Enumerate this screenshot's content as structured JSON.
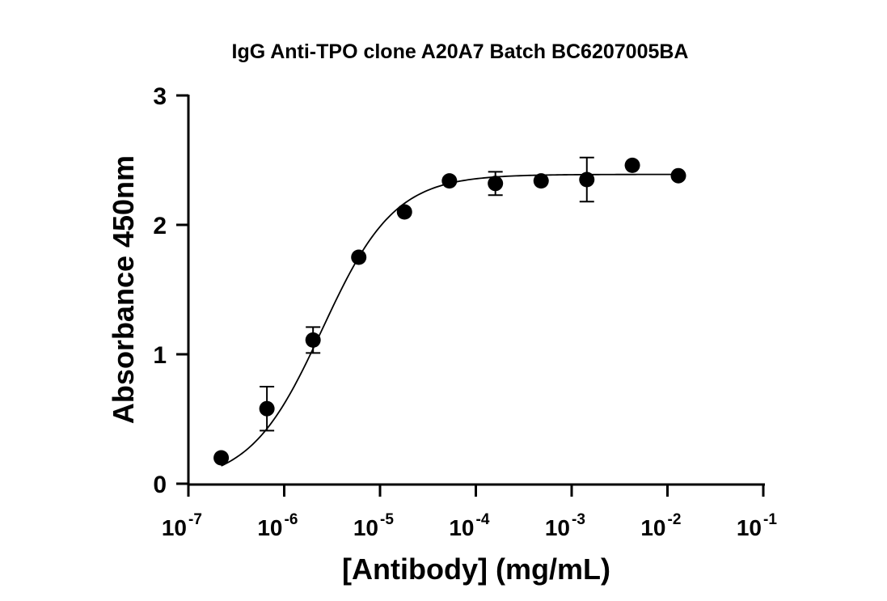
{
  "chart_data": {
    "type": "scatter",
    "title": "IgG Anti-TPO clone A20A7 Batch BC6207005BA",
    "xlabel": "[Antibody] (mg/mL)",
    "ylabel": "Absorbance 450nm",
    "x_scale": "log",
    "xlim": [
      1e-07,
      0.1
    ],
    "ylim": [
      0,
      3
    ],
    "y_ticks": [
      "0",
      "1",
      "2",
      "3"
    ],
    "x_ticks": [
      {
        "base": "10",
        "exp": "-7",
        "value": 1e-07
      },
      {
        "base": "10",
        "exp": "-6",
        "value": 1e-06
      },
      {
        "base": "10",
        "exp": "-5",
        "value": 1e-05
      },
      {
        "base": "10",
        "exp": "-4",
        "value": 0.0001
      },
      {
        "base": "10",
        "exp": "-3",
        "value": 0.001
      },
      {
        "base": "10",
        "exp": "-2",
        "value": 0.01
      },
      {
        "base": "10",
        "exp": "-1",
        "value": 0.1
      }
    ],
    "grid": false,
    "legend": "none",
    "series": [
      {
        "points": [
          {
            "x": 2.2e-07,
            "y": 0.2,
            "err": 0.0
          },
          {
            "x": 6.6e-07,
            "y": 0.58,
            "err": 0.17
          },
          {
            "x": 2e-06,
            "y": 1.11,
            "err": 0.1
          },
          {
            "x": 6e-06,
            "y": 1.75,
            "err": 0.0
          },
          {
            "x": 1.8e-05,
            "y": 2.1,
            "err": 0.0
          },
          {
            "x": 5.3e-05,
            "y": 2.34,
            "err": 0.0
          },
          {
            "x": 0.00016,
            "y": 2.32,
            "err": 0.09
          },
          {
            "x": 0.00048,
            "y": 2.34,
            "err": 0.0
          },
          {
            "x": 0.00144,
            "y": 2.35,
            "err": 0.17
          },
          {
            "x": 0.0043,
            "y": 2.46,
            "err": 0.0
          },
          {
            "x": 0.013,
            "y": 2.38,
            "err": 0.0
          }
        ],
        "fit": {
          "type": "4PL",
          "bottom": 0.0,
          "top": 2.39,
          "ec50": 2.5e-06,
          "hill": 1.15
        }
      }
    ]
  }
}
